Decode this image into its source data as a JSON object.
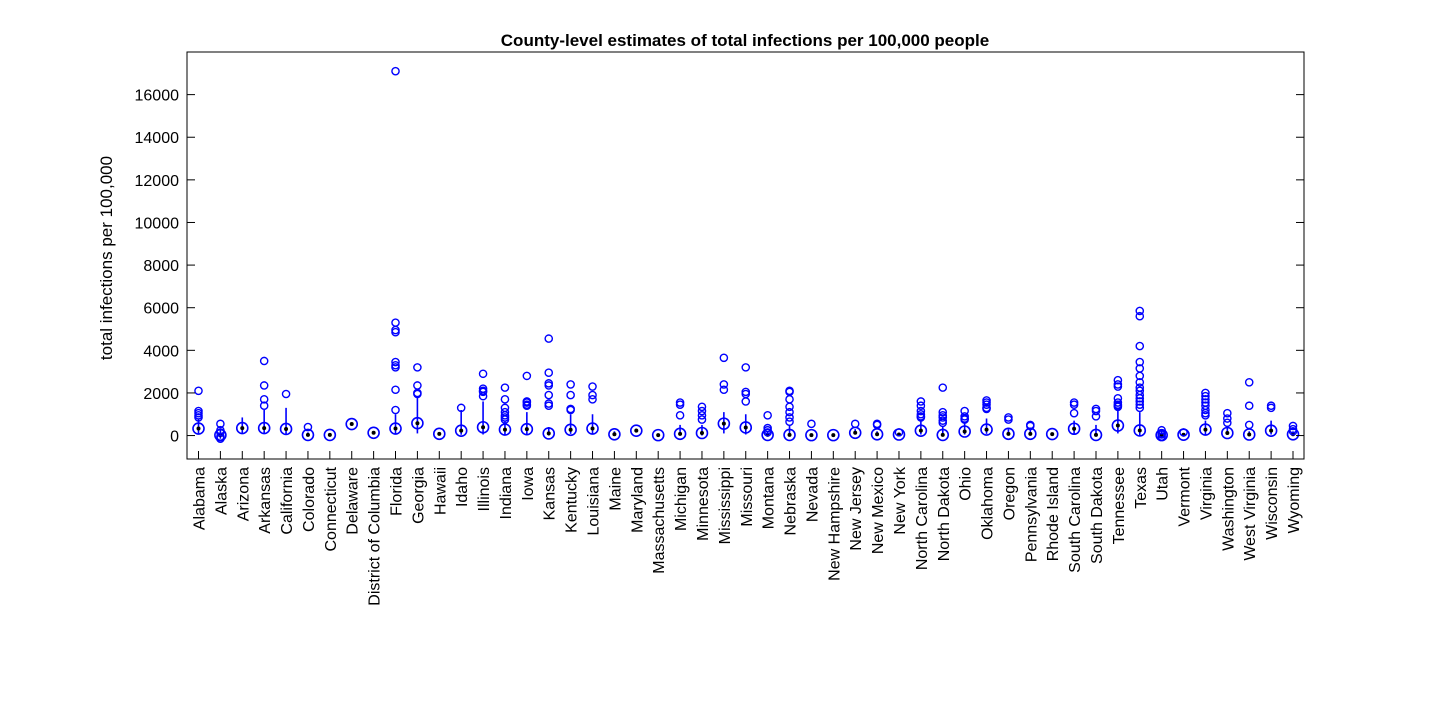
{
  "chart_data": {
    "type": "box",
    "title": "County-level estimates of total infections per 100,000 people",
    "xlabel": "",
    "ylabel": "total infections per 100,000",
    "ylim": [
      -1100,
      18000
    ],
    "yticks": [
      0,
      2000,
      4000,
      6000,
      8000,
      10000,
      12000,
      14000,
      16000
    ],
    "grid": false,
    "legend": "none",
    "colors": {
      "box": "#0000ff",
      "median_dot": "#000000",
      "axes": "#000000"
    },
    "categories": [
      "Alabama",
      "Alaska",
      "Arizona",
      "Arkansas",
      "California",
      "Colorado",
      "Connecticut",
      "Delaware",
      "District of Columbia",
      "Florida",
      "Georgia",
      "Hawaii",
      "Idaho",
      "Illinois",
      "Indiana",
      "Iowa",
      "Kansas",
      "Kentucky",
      "Louisiana",
      "Maine",
      "Maryland",
      "Massachusetts",
      "Michigan",
      "Minnesota",
      "Mississippi",
      "Missouri",
      "Montana",
      "Nebraska",
      "Nevada",
      "New Hampshire",
      "New Jersey",
      "New Mexico",
      "New York",
      "North Carolina",
      "North Dakota",
      "Ohio",
      "Oklahoma",
      "Oregon",
      "Pennsylvania",
      "Rhode Island",
      "South Carolina",
      "South Dakota",
      "Tennessee",
      "Texas",
      "Utah",
      "Vermont",
      "Virginia",
      "Washington",
      "West Virginia",
      "Wisconsin",
      "Wyoming"
    ],
    "series": [
      {
        "median": 330,
        "whisker": [
          100,
          800
        ],
        "outliers": [
          2100,
          1150,
          1050,
          950,
          850
        ]
      },
      {
        "median": 20,
        "whisker": [
          -150,
          300
        ],
        "outliers": [
          550,
          250,
          150,
          -50,
          -150
        ]
      },
      {
        "median": 350,
        "whisker": [
          80,
          850
        ],
        "outliers": []
      },
      {
        "median": 350,
        "whisker": [
          100,
          1200
        ],
        "outliers": [
          3500,
          2350,
          1700,
          1400
        ]
      },
      {
        "median": 310,
        "whisker": [
          60,
          1300
        ],
        "outliers": [
          1950
        ]
      },
      {
        "median": 30,
        "whisker": [
          0,
          150
        ],
        "outliers": [
          400
        ]
      },
      {
        "median": 30,
        "whisker": [
          10,
          80
        ],
        "outliers": []
      },
      {
        "median": 540,
        "whisker": [
          540,
          540
        ],
        "outliers": []
      },
      {
        "median": 130,
        "whisker": [
          130,
          130
        ],
        "outliers": []
      },
      {
        "median": 330,
        "whisker": [
          70,
          1000
        ],
        "outliers": [
          17100,
          5300,
          4950,
          4850,
          3450,
          3300,
          3200,
          2150,
          1200
        ]
      },
      {
        "median": 580,
        "whisker": [
          100,
          1800
        ],
        "outliers": [
          3200,
          2350,
          2000,
          1950
        ]
      },
      {
        "median": 80,
        "whisker": [
          30,
          150
        ],
        "outliers": []
      },
      {
        "median": 230,
        "whisker": [
          40,
          1200
        ],
        "outliers": [
          1300
        ]
      },
      {
        "median": 390,
        "whisker": [
          50,
          1600
        ],
        "outliers": [
          2900,
          2200,
          2100,
          2050,
          1850
        ]
      },
      {
        "median": 280,
        "whisker": [
          50,
          700
        ],
        "outliers": [
          2250,
          1700,
          1300,
          1100,
          950,
          850,
          750
        ]
      },
      {
        "median": 300,
        "whisker": [
          50,
          1100
        ],
        "outliers": [
          2800,
          1600,
          1550,
          1450,
          1400
        ]
      },
      {
        "median": 100,
        "whisker": [
          0,
          400
        ],
        "outliers": [
          4550,
          2950,
          2450,
          2350,
          1900,
          1500,
          1400
        ]
      },
      {
        "median": 270,
        "whisker": [
          80,
          1000
        ],
        "outliers": [
          2400,
          1900,
          1250,
          1200
        ]
      },
      {
        "median": 330,
        "whisker": [
          80,
          1000
        ],
        "outliers": [
          2300,
          1900,
          1700
        ]
      },
      {
        "median": 60,
        "whisker": [
          0,
          200
        ],
        "outliers": []
      },
      {
        "median": 230,
        "whisker": [
          150,
          330
        ],
        "outliers": []
      },
      {
        "median": 20,
        "whisker": [
          0,
          40
        ],
        "outliers": []
      },
      {
        "median": 80,
        "whisker": [
          0,
          500
        ],
        "outliers": [
          1550,
          1450,
          950
        ]
      },
      {
        "median": 120,
        "whisker": [
          0,
          500
        ],
        "outliers": [
          1350,
          1150,
          950,
          750
        ]
      },
      {
        "median": 560,
        "whisker": [
          100,
          1100
        ],
        "outliers": [
          3650,
          2400,
          2150
        ]
      },
      {
        "median": 380,
        "whisker": [
          50,
          1000
        ],
        "outliers": [
          3200,
          2050,
          1950,
          1600
        ]
      },
      {
        "median": 30,
        "whisker": [
          0,
          200
        ],
        "outliers": [
          950,
          350,
          250,
          150
        ]
      },
      {
        "median": 30,
        "whisker": [
          0,
          500
        ],
        "outliers": [
          2100,
          2050,
          1700,
          1350,
          1100,
          850,
          650
        ]
      },
      {
        "median": 20,
        "whisker": [
          0,
          100
        ],
        "outliers": [
          550
        ]
      },
      {
        "median": 20,
        "whisker": [
          0,
          60
        ],
        "outliers": []
      },
      {
        "median": 130,
        "whisker": [
          50,
          300
        ],
        "outliers": [
          550
        ]
      },
      {
        "median": 60,
        "whisker": [
          0,
          200
        ],
        "outliers": [
          550,
          500
        ]
      },
      {
        "median": 50,
        "whisker": [
          0,
          100
        ],
        "outliers": [
          150
        ]
      },
      {
        "median": 230,
        "whisker": [
          50,
          700
        ],
        "outliers": [
          1600,
          1400,
          1150,
          1000,
          900,
          850
        ]
      },
      {
        "median": 30,
        "whisker": [
          0,
          400
        ],
        "outliers": [
          2250,
          1100,
          950,
          850,
          700,
          600
        ]
      },
      {
        "median": 190,
        "whisker": [
          50,
          600
        ],
        "outliers": [
          1150,
          900,
          800,
          750
        ]
      },
      {
        "median": 280,
        "whisker": [
          80,
          800
        ],
        "outliers": [
          1650,
          1550,
          1450,
          1300,
          1250
        ]
      },
      {
        "median": 80,
        "whisker": [
          0,
          300
        ],
        "outliers": [
          850,
          750
        ]
      },
      {
        "median": 80,
        "whisker": [
          0,
          300
        ],
        "outliers": [
          500,
          450
        ]
      },
      {
        "median": 70,
        "whisker": [
          30,
          120
        ],
        "outliers": []
      },
      {
        "median": 320,
        "whisker": [
          80,
          700
        ],
        "outliers": [
          1550,
          1450,
          1050
        ]
      },
      {
        "median": 30,
        "whisker": [
          0,
          500
        ],
        "outliers": [
          1250,
          1150,
          900
        ]
      },
      {
        "median": 470,
        "whisker": [
          100,
          1200
        ],
        "outliers": [
          2600,
          2400,
          2300,
          1750,
          1550,
          1450,
          1400,
          1350
        ]
      },
      {
        "median": 240,
        "whisker": [
          0,
          1100
        ],
        "outliers": [
          5850,
          5600,
          4200,
          3450,
          3150,
          2800,
          2500,
          2250,
          2100,
          1900,
          1750,
          1600,
          1450,
          1300
        ]
      },
      {
        "median": 20,
        "whisker": [
          -100,
          200
        ],
        "outliers": [
          250,
          100,
          50,
          -50
        ]
      },
      {
        "median": 40,
        "whisker": [
          0,
          100
        ],
        "outliers": [
          150
        ]
      },
      {
        "median": 280,
        "whisker": [
          50,
          700
        ],
        "outliers": [
          2000,
          1850,
          1700,
          1550,
          1400,
          1200,
          1050,
          950
        ]
      },
      {
        "median": 120,
        "whisker": [
          30,
          400
        ],
        "outliers": [
          1050,
          800,
          600
        ]
      },
      {
        "median": 50,
        "whisker": [
          0,
          200
        ],
        "outliers": [
          2500,
          1400,
          500
        ]
      },
      {
        "median": 230,
        "whisker": [
          50,
          700
        ],
        "outliers": [
          1400,
          1300
        ]
      },
      {
        "median": 60,
        "whisker": [
          0,
          200
        ],
        "outliers": [
          450,
          300,
          200
        ]
      }
    ]
  }
}
